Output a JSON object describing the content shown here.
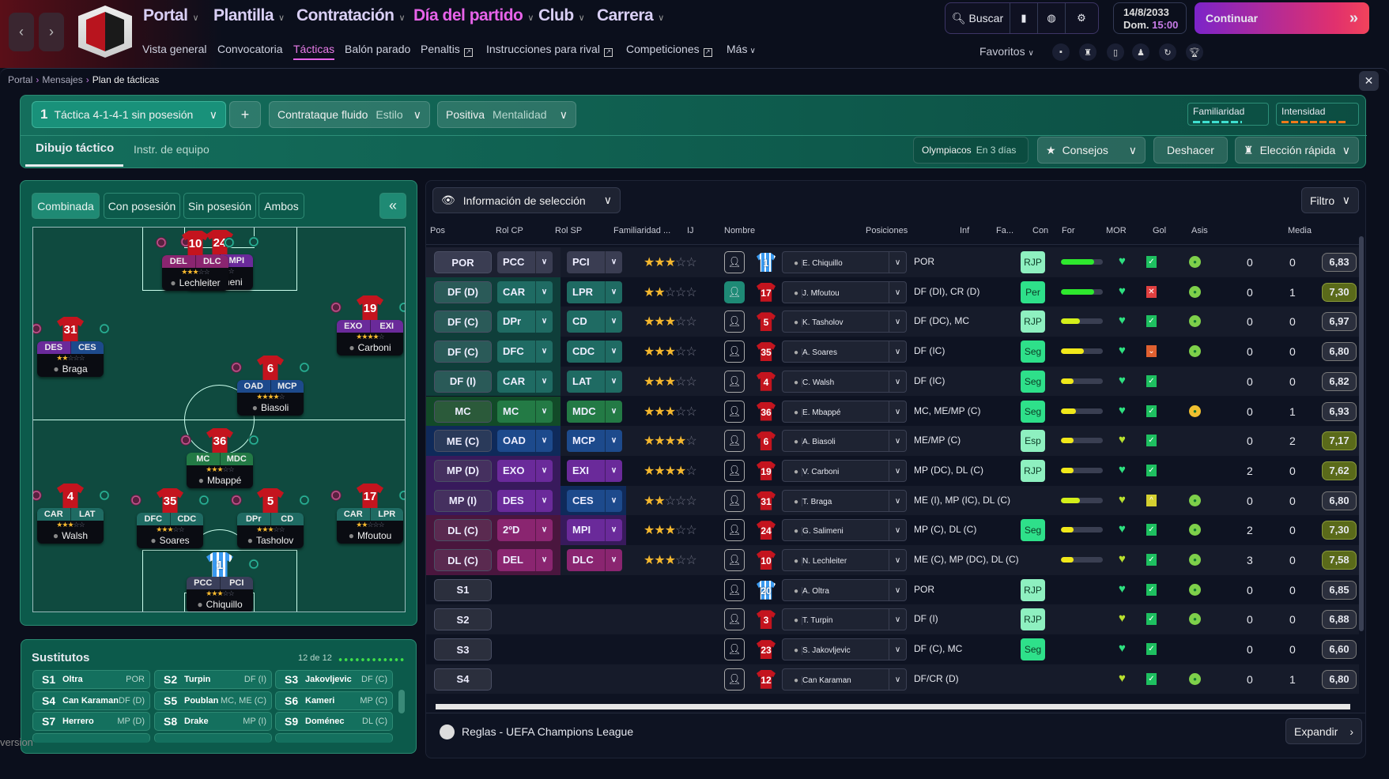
{
  "topnav": {
    "items": [
      {
        "label": "Portal"
      },
      {
        "label": "Plantilla"
      },
      {
        "label": "Contratación"
      },
      {
        "label": "Día del partido",
        "active": true
      },
      {
        "label": "Club"
      },
      {
        "label": "Carrera"
      }
    ],
    "subnav": [
      {
        "label": "Vista general"
      },
      {
        "label": "Convocatoria"
      },
      {
        "label": "Tácticas",
        "active": true
      },
      {
        "label": "Balón parado"
      },
      {
        "label": "Penaltis",
        "ext": true
      },
      {
        "label": "Instrucciones para rival",
        "ext": true
      },
      {
        "label": "Competiciones",
        "ext": true
      },
      {
        "label": "Más"
      }
    ],
    "search": "Buscar",
    "date": "14/8/2033",
    "day": "Dom.",
    "time": "15:00",
    "continue": "Continuar",
    "favorites": "Favoritos"
  },
  "breadcrumb": [
    "Portal",
    "Mensajes",
    "Plan de tácticas"
  ],
  "header": {
    "tactic_num": "1",
    "tactic": "Táctica 4-1-4-1 sin posesión",
    "style_value": "Contrataque fluido",
    "style_label": "Estilo",
    "mentality_value": "Positiva",
    "mentality_label": "Mentalidad",
    "familiarity": "Familiaridad",
    "intensity": "Intensidad",
    "tabs": [
      "Dibujo táctico",
      "Instr. de equipo"
    ],
    "opponent": "Olympiacos",
    "opponent_when": "En 3 días",
    "advice": "Consejos",
    "undo": "Deshacer",
    "quick_pick": "Elección rápida"
  },
  "pitch": {
    "tabs": [
      "Combinada",
      "Con posesión",
      "Sin posesión",
      "Ambos"
    ],
    "players": [
      {
        "num": "24",
        "roles": [
          "2ºD",
          "MPI"
        ],
        "colors": [
          "#8a2570",
          "#6a2a9a"
        ],
        "stars": 2.5,
        "name": "Salimeni"
      },
      {
        "num": "10",
        "roles": [
          "DEL",
          "DLC"
        ],
        "colors": [
          "#8a2570",
          "#8a2570"
        ],
        "stars": 3,
        "name": "Lechleiter"
      },
      {
        "num": "31",
        "roles": [
          "DES",
          "CES"
        ],
        "colors": [
          "#6a2a9a",
          "#1d4a8c"
        ],
        "stars": 2,
        "name": "Braga"
      },
      {
        "num": "19",
        "roles": [
          "EXO",
          "EXI"
        ],
        "colors": [
          "#6a2a9a",
          "#6a2a9a"
        ],
        "stars": 3.5,
        "name": "Carboni"
      },
      {
        "num": "6",
        "roles": [
          "OAD",
          "MCP"
        ],
        "colors": [
          "#1d4a8c",
          "#1d4a8c"
        ],
        "stars": 3.5,
        "name": "Biasoli"
      },
      {
        "num": "36",
        "roles": [
          "MC",
          "MDC"
        ],
        "colors": [
          "#237a45",
          "#237a45"
        ],
        "stars": 3,
        "name": "Mbappé"
      },
      {
        "num": "4",
        "roles": [
          "CAR",
          "LAT"
        ],
        "colors": [
          "#1f6b63",
          "#1f6b63"
        ],
        "stars": 2.5,
        "name": "Walsh"
      },
      {
        "num": "35",
        "roles": [
          "DFC",
          "CDC"
        ],
        "colors": [
          "#1f6b63",
          "#1f6b63"
        ],
        "stars": 2.5,
        "name": "Soares"
      },
      {
        "num": "5",
        "roles": [
          "DPr",
          "CD"
        ],
        "colors": [
          "#1f6b63",
          "#1f6b63"
        ],
        "stars": 2.5,
        "name": "Tasholov"
      },
      {
        "num": "17",
        "roles": [
          "CAR",
          "LPR"
        ],
        "colors": [
          "#1f6b63",
          "#1f6b63"
        ],
        "stars": 2,
        "name": "Mfoutou"
      },
      {
        "num": "1",
        "roles": [
          "PCC",
          "PCI"
        ],
        "colors": [
          "#3a3f5a",
          "#3a3f5a"
        ],
        "stars": 2.5,
        "name": "Chiquillo",
        "gk": true
      }
    ]
  },
  "subs": {
    "title": "Sustitutos",
    "count": "12 de 12",
    "items": [
      {
        "n": "S1",
        "name": "Oltra",
        "pos": "POR"
      },
      {
        "n": "S2",
        "name": "Turpin",
        "pos": "DF (I)"
      },
      {
        "n": "S3",
        "name": "Jakovljevic",
        "pos": "DF (C)"
      },
      {
        "n": "S4",
        "name": "Can Karaman",
        "pos": "DF (D)"
      },
      {
        "n": "S5",
        "name": "Poublan",
        "pos": "MC, ME (C)"
      },
      {
        "n": "S6",
        "name": "Kameri",
        "pos": "MP (C)"
      },
      {
        "n": "S7",
        "name": "Herrero",
        "pos": "MP (D)"
      },
      {
        "n": "S8",
        "name": "Drake",
        "pos": "MP (I)"
      },
      {
        "n": "S9",
        "name": "Doménec",
        "pos": "DL (C)"
      }
    ]
  },
  "version": "version",
  "table": {
    "info_selector": "Información de selección",
    "filter": "Filtro",
    "columns": [
      "Pos",
      "Rol CP",
      "Rol SP",
      "Familiaridad ...",
      "IJ",
      "Nombre",
      "Posiciones",
      "Inf",
      "Fa...",
      "Con",
      "For",
      "MOR",
      "Gol",
      "Asis",
      "Media"
    ],
    "rows": [
      {
        "pos": "POR",
        "g": "por",
        "cp": "PCC",
        "sp": "PCI",
        "stars": 2.5,
        "ij": false,
        "num": "1",
        "gk": true,
        "name": "E. Chiquillo",
        "positions": "POR",
        "inf": "RJP",
        "fa": 0.8,
        "con": "green",
        "for": "ok",
        "mor": "green",
        "gol": "0",
        "asis": "0",
        "media": "6,83",
        "hi": false
      },
      {
        "pos": "DF (D)",
        "g": "df",
        "cp": "CAR",
        "sp": "LPR",
        "stars": 2,
        "ij": true,
        "num": "17",
        "name": "J. Mfoutou",
        "positions": "DF (DI), CR (D)",
        "inf": "Per",
        "fa": 0.8,
        "con": "green",
        "for": "bad",
        "mor": "green",
        "gol": "0",
        "asis": "1",
        "media": "7,30",
        "hi": true
      },
      {
        "pos": "DF (C)",
        "g": "df",
        "cp": "DPr",
        "sp": "CD",
        "stars": 2.5,
        "ij": false,
        "num": "5",
        "name": "K. Tasholov",
        "positions": "DF (DC), MC",
        "inf": "RJP",
        "fa": 0.45,
        "con": "green",
        "for": "ok",
        "mor": "green",
        "gol": "0",
        "asis": "0",
        "media": "6,97",
        "hi": false
      },
      {
        "pos": "DF (C)",
        "g": "df",
        "cp": "DFC",
        "sp": "CDC",
        "stars": 2.5,
        "ij": false,
        "num": "35",
        "name": "A. Soares",
        "positions": "DF (IC)",
        "inf": "Seg",
        "fa": 0.55,
        "con": "green",
        "for": "down",
        "mor": "green",
        "gol": "0",
        "asis": "0",
        "media": "6,80",
        "hi": false
      },
      {
        "pos": "DF (I)",
        "g": "df",
        "cp": "CAR",
        "sp": "LAT",
        "stars": 2.5,
        "ij": false,
        "num": "4",
        "name": "C. Walsh",
        "positions": "DF (IC)",
        "inf": "Seg",
        "fa": 0.3,
        "con": "green",
        "for": "ok",
        "mor": "",
        "gol": "0",
        "asis": "0",
        "media": "6,82",
        "hi": false
      },
      {
        "pos": "MC",
        "g": "mc",
        "cp": "MC",
        "sp": "MDC",
        "stars": 3,
        "ij": false,
        "num": "36",
        "name": "E. Mbappé",
        "positions": "MC, ME/MP (C)",
        "inf": "Seg",
        "fa": 0.35,
        "con": "green",
        "for": "ok",
        "mor": "yellow",
        "gol": "0",
        "asis": "1",
        "media": "6,93",
        "hi": false
      },
      {
        "pos": "ME (C)",
        "g": "me",
        "cp": "OAD",
        "sp": "MCP",
        "stars": 3.5,
        "ij": false,
        "num": "6",
        "name": "A. Biasoli",
        "positions": "ME/MP (C)",
        "inf": "Esp",
        "fa": 0.3,
        "con": "yellow",
        "for": "ok",
        "mor": "",
        "gol": "0",
        "asis": "2",
        "media": "7,17",
        "hi": true
      },
      {
        "pos": "MP (D)",
        "g": "mp",
        "cp": "EXO",
        "sp": "EXI",
        "stars": 3.5,
        "ij": false,
        "num": "19",
        "name": "V. Carboni",
        "positions": "MP (DC), DL (C)",
        "inf": "RJP",
        "fa": 0.3,
        "con": "green",
        "for": "ok",
        "mor": "",
        "gol": "2",
        "asis": "0",
        "media": "7,62",
        "hi": true
      },
      {
        "pos": "MP (I)",
        "g": "mp",
        "cp": "DES",
        "sp": "CES",
        "spg": "me",
        "stars": 2,
        "ij": false,
        "num": "31",
        "name": "T. Braga",
        "positions": "ME (I), MP (IC), DL (C)",
        "inf": "",
        "fa": 0.45,
        "con": "yellow",
        "for": "up",
        "mor": "green",
        "gol": "0",
        "asis": "0",
        "media": "6,80",
        "hi": false
      },
      {
        "pos": "DL (C)",
        "g": "dl",
        "cp": "2ºD",
        "sp": "MPI",
        "spg": "mp",
        "stars": 2.5,
        "ij": false,
        "num": "24",
        "name": "G. Salimeni",
        "positions": "MP (C), DL (C)",
        "inf": "Seg",
        "fa": 0.3,
        "con": "green",
        "for": "ok",
        "mor": "green",
        "gol": "2",
        "asis": "0",
        "media": "7,30",
        "hi": true
      },
      {
        "pos": "DL (C)",
        "g": "dl",
        "cp": "DEL",
        "sp": "DLC",
        "stars": 3,
        "ij": false,
        "num": "10",
        "name": "N. Lechleiter",
        "positions": "ME (C), MP (DC), DL (C)",
        "inf": "",
        "fa": 0.3,
        "con": "yellow",
        "for": "ok",
        "mor": "green",
        "gol": "3",
        "asis": "0",
        "media": "7,58",
        "hi": true
      },
      {
        "pos": "S1",
        "g": "sub",
        "ij": false,
        "num": "20",
        "gk": true,
        "name": "A. Oltra",
        "positions": "POR",
        "inf": "RJP",
        "con": "green",
        "for": "ok",
        "mor": "green",
        "gol": "0",
        "asis": "0",
        "media": "6,85",
        "hi": false
      },
      {
        "pos": "S2",
        "g": "sub",
        "ij": false,
        "num": "3",
        "name": "T. Turpin",
        "positions": "DF (I)",
        "inf": "RJP",
        "con": "yellow",
        "for": "ok",
        "mor": "green",
        "gol": "0",
        "asis": "0",
        "media": "6,88",
        "hi": false
      },
      {
        "pos": "S3",
        "g": "sub",
        "ij": false,
        "num": "23",
        "name": "S. Jakovljevic",
        "positions": "DF (C), MC",
        "inf": "Seg",
        "con": "green",
        "for": "ok",
        "mor": "",
        "gol": "0",
        "asis": "0",
        "media": "6,60",
        "hi": false
      },
      {
        "pos": "S4",
        "g": "sub",
        "ij": false,
        "num": "12",
        "name": "Can Karaman",
        "positions": "DF/CR (D)",
        "inf": "",
        "con": "yellow",
        "for": "ok",
        "mor": "green",
        "gol": "0",
        "asis": "1",
        "media": "6,80",
        "hi": false
      }
    ]
  },
  "footer": {
    "rules": "Reglas - UEFA Champions League",
    "expand": "Expandir"
  }
}
